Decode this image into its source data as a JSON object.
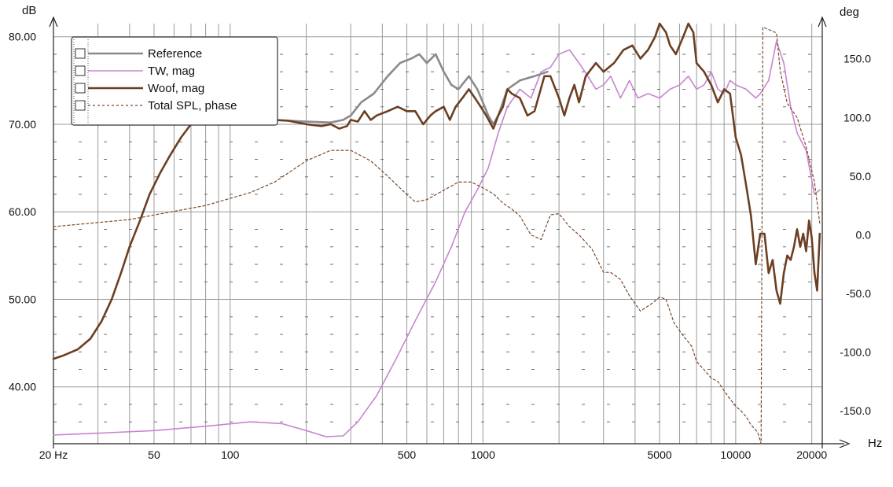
{
  "chart_data": {
    "type": "line",
    "x_scale": "log",
    "xlim": [
      20,
      22000
    ],
    "ylim_left": [
      33.5,
      81.5
    ],
    "ylim_right": [
      -178,
      180
    ],
    "grid": true,
    "legend_position": "top-left",
    "left_unit": "dB",
    "right_unit": "deg",
    "x_unit": "Hz",
    "x_tick_labels": [
      {
        "v": 20,
        "label": "20 Hz"
      },
      {
        "v": 50,
        "label": "50"
      },
      {
        "v": 100,
        "label": "100"
      },
      {
        "v": 500,
        "label": "500"
      },
      {
        "v": 1000,
        "label": "1000"
      },
      {
        "v": 5000,
        "label": "5000"
      },
      {
        "v": 10000,
        "label": "10000"
      },
      {
        "v": 20000,
        "label": "20000"
      }
    ],
    "left_tick_labels": [
      {
        "v": 80,
        "label": "80.00"
      },
      {
        "v": 70,
        "label": "70.00"
      },
      {
        "v": 60,
        "label": "60.00"
      },
      {
        "v": 50,
        "label": "50.00"
      },
      {
        "v": 40,
        "label": "40.00"
      }
    ],
    "right_tick_labels": [
      {
        "v": 150,
        "label": "150.0"
      },
      {
        "v": 100,
        "label": "100.0"
      },
      {
        "v": 50,
        "label": "50.0"
      },
      {
        "v": 0,
        "label": "0.0"
      },
      {
        "v": -50,
        "label": "-50.0"
      },
      {
        "v": -100,
        "label": "-100.0"
      },
      {
        "v": -150,
        "label": "-150.0"
      }
    ],
    "series": [
      {
        "name": "Reference",
        "axis": "left",
        "color": "#8a8a8a",
        "dash": "none",
        "width": 2.6,
        "points": [
          [
            80,
            71.3
          ],
          [
            100,
            71
          ],
          [
            150,
            70.5
          ],
          [
            200,
            70.3
          ],
          [
            250,
            70.2
          ],
          [
            280,
            70.5
          ],
          [
            300,
            71
          ],
          [
            330,
            72.5
          ],
          [
            370,
            73.5
          ],
          [
            420,
            75.5
          ],
          [
            470,
            77
          ],
          [
            520,
            77.5
          ],
          [
            560,
            78
          ],
          [
            600,
            77
          ],
          [
            650,
            78
          ],
          [
            700,
            76
          ],
          [
            750,
            74.5
          ],
          [
            800,
            74
          ],
          [
            880,
            75.5
          ],
          [
            950,
            74
          ],
          [
            1000,
            72.5
          ],
          [
            1050,
            71
          ],
          [
            1100,
            70
          ],
          [
            1150,
            71
          ],
          [
            1250,
            74
          ],
          [
            1400,
            75
          ],
          [
            1600,
            75.5
          ],
          [
            1800,
            76
          ]
        ]
      },
      {
        "name": "TW, mag",
        "axis": "left",
        "color": "#c785cf",
        "dash": "none",
        "width": 1.6,
        "points": [
          [
            20,
            34.5
          ],
          [
            30,
            34.7
          ],
          [
            50,
            35
          ],
          [
            80,
            35.5
          ],
          [
            120,
            36
          ],
          [
            160,
            35.8
          ],
          [
            200,
            35
          ],
          [
            240,
            34.3
          ],
          [
            280,
            34.4
          ],
          [
            320,
            36
          ],
          [
            380,
            39
          ],
          [
            450,
            43
          ],
          [
            550,
            48
          ],
          [
            650,
            52
          ],
          [
            750,
            56
          ],
          [
            850,
            60
          ],
          [
            950,
            62.5
          ],
          [
            1050,
            65
          ],
          [
            1150,
            69
          ],
          [
            1250,
            72
          ],
          [
            1400,
            74
          ],
          [
            1550,
            73
          ],
          [
            1700,
            76
          ],
          [
            1850,
            76.5
          ],
          [
            2000,
            78
          ],
          [
            2200,
            78.5
          ],
          [
            2400,
            77
          ],
          [
            2600,
            75.5
          ],
          [
            2800,
            74
          ],
          [
            3000,
            74.5
          ],
          [
            3200,
            75.5
          ],
          [
            3500,
            73
          ],
          [
            3800,
            75
          ],
          [
            4100,
            73
          ],
          [
            4500,
            73.5
          ],
          [
            5000,
            73
          ],
          [
            5500,
            74
          ],
          [
            6000,
            74.5
          ],
          [
            6500,
            75.5
          ],
          [
            7000,
            74
          ],
          [
            7500,
            74.5
          ],
          [
            8000,
            76
          ],
          [
            8500,
            74
          ],
          [
            9000,
            73.5
          ],
          [
            9500,
            75
          ],
          [
            10000,
            74.5
          ],
          [
            11000,
            74
          ],
          [
            12000,
            73
          ],
          [
            12500,
            73.5
          ],
          [
            13500,
            75
          ],
          [
            14500,
            79.5
          ],
          [
            15500,
            77
          ],
          [
            16500,
            72
          ],
          [
            17500,
            69
          ],
          [
            19000,
            67
          ],
          [
            20500,
            62
          ],
          [
            21500,
            62.5
          ]
        ]
      },
      {
        "name": "Woof, mag",
        "axis": "left",
        "color": "#6b3f22",
        "dash": "none",
        "width": 2.6,
        "points": [
          [
            20,
            43.2
          ],
          [
            22,
            43.6
          ],
          [
            25,
            44.3
          ],
          [
            28,
            45.5
          ],
          [
            31,
            47.5
          ],
          [
            34,
            50
          ],
          [
            37,
            53
          ],
          [
            40,
            56
          ],
          [
            44,
            59
          ],
          [
            48,
            62
          ],
          [
            53,
            64.5
          ],
          [
            58,
            66.5
          ],
          [
            64,
            68.5
          ],
          [
            70,
            70
          ],
          [
            77,
            71
          ],
          [
            85,
            71.4
          ],
          [
            95,
            71.3
          ],
          [
            110,
            70.8
          ],
          [
            130,
            70.5
          ],
          [
            150,
            70.5
          ],
          [
            170,
            70.4
          ],
          [
            200,
            70
          ],
          [
            230,
            69.8
          ],
          [
            250,
            70
          ],
          [
            270,
            69.5
          ],
          [
            290,
            69.8
          ],
          [
            300,
            70.5
          ],
          [
            320,
            70.3
          ],
          [
            340,
            71.5
          ],
          [
            360,
            70.5
          ],
          [
            380,
            71
          ],
          [
            420,
            71.5
          ],
          [
            460,
            72
          ],
          [
            500,
            71.5
          ],
          [
            540,
            71.5
          ],
          [
            580,
            70
          ],
          [
            620,
            71
          ],
          [
            650,
            71.5
          ],
          [
            700,
            72
          ],
          [
            740,
            70.5
          ],
          [
            780,
            72
          ],
          [
            830,
            73
          ],
          [
            880,
            74
          ],
          [
            930,
            73
          ],
          [
            980,
            72
          ],
          [
            1030,
            71
          ],
          [
            1100,
            69.5
          ],
          [
            1150,
            71
          ],
          [
            1200,
            72
          ],
          [
            1250,
            74
          ],
          [
            1300,
            73.5
          ],
          [
            1400,
            73
          ],
          [
            1500,
            71
          ],
          [
            1600,
            71.5
          ],
          [
            1750,
            75.5
          ],
          [
            1850,
            75.5
          ],
          [
            2000,
            73
          ],
          [
            2100,
            71
          ],
          [
            2200,
            73
          ],
          [
            2300,
            74.5
          ],
          [
            2400,
            72.5
          ],
          [
            2550,
            75.5
          ],
          [
            2800,
            77
          ],
          [
            3000,
            76
          ],
          [
            3300,
            77
          ],
          [
            3600,
            78.5
          ],
          [
            3900,
            79
          ],
          [
            4200,
            77.5
          ],
          [
            4500,
            78.5
          ],
          [
            4800,
            80
          ],
          [
            5000,
            81.5
          ],
          [
            5300,
            80.5
          ],
          [
            5500,
            79
          ],
          [
            5800,
            78
          ],
          [
            6200,
            80
          ],
          [
            6500,
            81.5
          ],
          [
            6800,
            80.5
          ],
          [
            7000,
            77
          ],
          [
            7500,
            76
          ],
          [
            8000,
            74.5
          ],
          [
            8500,
            72.5
          ],
          [
            9000,
            74
          ],
          [
            9500,
            73.5
          ],
          [
            10000,
            68.5
          ],
          [
            10500,
            66.5
          ],
          [
            11000,
            63
          ],
          [
            11500,
            59.5
          ],
          [
            12000,
            54
          ],
          [
            12500,
            57.5
          ],
          [
            13000,
            57.5
          ],
          [
            13500,
            53
          ],
          [
            14000,
            54.5
          ],
          [
            14500,
            51
          ],
          [
            15000,
            49.5
          ],
          [
            15500,
            53
          ],
          [
            16000,
            55
          ],
          [
            16500,
            54.5
          ],
          [
            17000,
            56
          ],
          [
            17500,
            58
          ],
          [
            18000,
            56
          ],
          [
            18500,
            57.5
          ],
          [
            19000,
            55.5
          ],
          [
            19500,
            59
          ],
          [
            20000,
            57
          ],
          [
            20500,
            53
          ],
          [
            21000,
            51
          ],
          [
            21500,
            57.5
          ]
        ]
      },
      {
        "name": "Total SPL, phase",
        "axis": "right",
        "color": "#7a4a2b",
        "dash": "3,3",
        "width": 1.2,
        "points": [
          [
            20,
            7
          ],
          [
            40,
            13
          ],
          [
            80,
            25
          ],
          [
            120,
            36
          ],
          [
            150,
            45
          ],
          [
            200,
            63
          ],
          [
            250,
            72
          ],
          [
            300,
            72
          ],
          [
            360,
            63
          ],
          [
            420,
            50
          ],
          [
            480,
            38
          ],
          [
            540,
            28
          ],
          [
            600,
            30
          ],
          [
            700,
            38
          ],
          [
            800,
            45
          ],
          [
            900,
            45
          ],
          [
            1000,
            40
          ],
          [
            1100,
            35
          ],
          [
            1200,
            27
          ],
          [
            1300,
            22
          ],
          [
            1400,
            16
          ],
          [
            1550,
            0
          ],
          [
            1700,
            -4
          ],
          [
            1850,
            17
          ],
          [
            2000,
            18
          ],
          [
            2200,
            7
          ],
          [
            2400,
            0
          ],
          [
            2700,
            -12
          ],
          [
            3000,
            -32
          ],
          [
            3200,
            -32
          ],
          [
            3500,
            -38
          ],
          [
            3800,
            -52
          ],
          [
            4200,
            -65
          ],
          [
            4700,
            -58
          ],
          [
            5000,
            -53
          ],
          [
            5300,
            -55
          ],
          [
            5700,
            -75
          ],
          [
            6200,
            -86
          ],
          [
            6700,
            -95
          ],
          [
            7000,
            -108
          ],
          [
            7500,
            -115
          ],
          [
            8000,
            -122
          ],
          [
            8500,
            -125
          ],
          [
            9000,
            -133
          ],
          [
            9500,
            -140
          ],
          [
            10000,
            -146
          ],
          [
            10500,
            -150
          ],
          [
            11000,
            -155
          ],
          [
            11500,
            -162
          ],
          [
            12200,
            -168
          ],
          [
            12600,
            -178
          ],
          [
            12800,
            177
          ],
          [
            13500,
            175
          ],
          [
            14500,
            172
          ],
          [
            15000,
            140
          ],
          [
            16000,
            112
          ],
          [
            17500,
            100
          ],
          [
            19000,
            75
          ],
          [
            20500,
            45
          ],
          [
            21500,
            10
          ]
        ]
      }
    ]
  }
}
